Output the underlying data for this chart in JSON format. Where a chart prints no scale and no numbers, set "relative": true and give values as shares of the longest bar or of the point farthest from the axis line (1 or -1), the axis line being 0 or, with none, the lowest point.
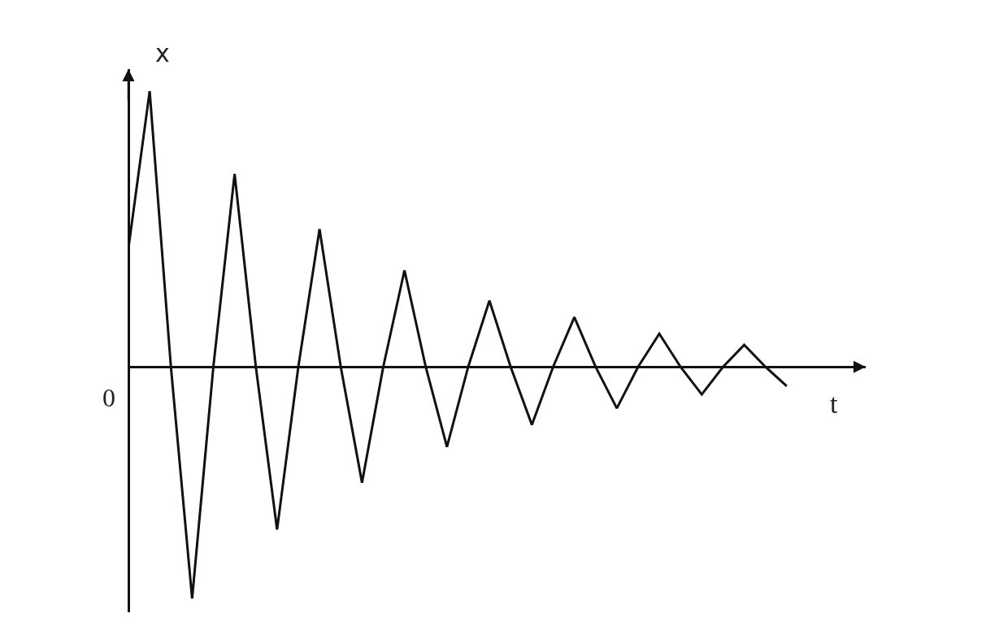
{
  "chart_data": {
    "type": "line",
    "relative": true,
    "xlabel": "t",
    "ylabel": "x",
    "annotations": [
      "0"
    ],
    "categories": [
      null,
      null,
      null,
      null,
      null,
      null,
      null,
      null,
      null,
      null,
      null,
      null,
      null,
      null,
      null,
      null,
      null,
      null,
      null,
      null,
      null,
      null,
      null,
      null,
      null,
      null,
      null,
      null,
      null,
      null,
      null,
      null
    ],
    "series": [
      {
        "color": "#111111",
        "values": [
          0.43,
          1.0,
          0,
          -0.84,
          0,
          0.7,
          0,
          -0.59,
          0,
          0.5,
          0,
          -0.42,
          0,
          0.35,
          0,
          -0.29,
          0,
          0.24,
          0,
          -0.21,
          0,
          0.18,
          0,
          -0.15,
          0,
          0.12,
          0,
          -0.1,
          0,
          0.08,
          0,
          -0.07
        ]
      }
    ],
    "grid": false,
    "marker": "none",
    "line_style": "solid"
  }
}
